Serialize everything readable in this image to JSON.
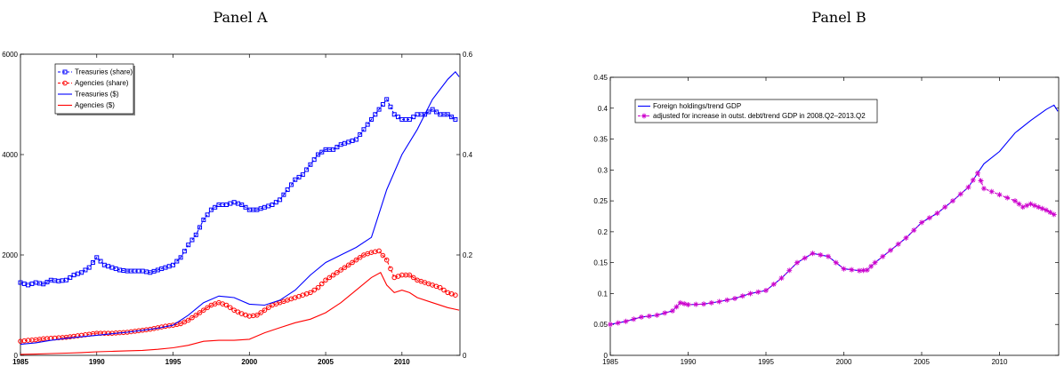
{
  "panels": {
    "a_title": "Panel A",
    "b_title": "Panel B"
  },
  "chart_data": [
    {
      "type": "line",
      "title": "Panel A",
      "xlim": [
        1985,
        2013.8
      ],
      "ylim_left": [
        0,
        6000
      ],
      "ylim_right": [
        0,
        0.6
      ],
      "x_ticks": [
        1985,
        1990,
        1995,
        2000,
        2005,
        2010
      ],
      "y_ticks_left": [
        0,
        2000,
        4000,
        6000
      ],
      "y_ticks_right": [
        0,
        0.2,
        0.4,
        0.6
      ],
      "legend_position": "top-left",
      "series": [
        {
          "name": "Treasuries (share)",
          "axis": "right",
          "color": "#0000ff",
          "style": "dashed-square",
          "points": [
            [
              1985,
              0.145
            ],
            [
              1985.5,
              0.14
            ],
            [
              1986,
              0.145
            ],
            [
              1986.5,
              0.142
            ],
            [
              1987,
              0.15
            ],
            [
              1987.5,
              0.148
            ],
            [
              1988,
              0.15
            ],
            [
              1988.5,
              0.16
            ],
            [
              1989,
              0.165
            ],
            [
              1989.5,
              0.175
            ],
            [
              1990,
              0.195
            ],
            [
              1990.5,
              0.18
            ],
            [
              1991,
              0.175
            ],
            [
              1991.5,
              0.17
            ],
            [
              1992,
              0.168
            ],
            [
              1992.5,
              0.168
            ],
            [
              1993,
              0.168
            ],
            [
              1993.5,
              0.165
            ],
            [
              1994,
              0.17
            ],
            [
              1994.5,
              0.175
            ],
            [
              1995,
              0.18
            ],
            [
              1995.5,
              0.195
            ],
            [
              1996,
              0.22
            ],
            [
              1996.5,
              0.24
            ],
            [
              1997,
              0.27
            ],
            [
              1997.5,
              0.29
            ],
            [
              1998,
              0.3
            ],
            [
              1998.5,
              0.3
            ],
            [
              1999,
              0.305
            ],
            [
              1999.5,
              0.3
            ],
            [
              2000,
              0.29
            ],
            [
              2000.5,
              0.29
            ],
            [
              2001,
              0.295
            ],
            [
              2001.5,
              0.3
            ],
            [
              2002,
              0.31
            ],
            [
              2002.5,
              0.33
            ],
            [
              2003,
              0.35
            ],
            [
              2003.5,
              0.36
            ],
            [
              2004,
              0.38
            ],
            [
              2004.5,
              0.4
            ],
            [
              2005,
              0.41
            ],
            [
              2005.5,
              0.41
            ],
            [
              2006,
              0.42
            ],
            [
              2006.5,
              0.425
            ],
            [
              2007,
              0.43
            ],
            [
              2007.5,
              0.45
            ],
            [
              2008,
              0.47
            ],
            [
              2008.5,
              0.49
            ],
            [
              2009,
              0.51
            ],
            [
              2009.5,
              0.48
            ],
            [
              2010,
              0.47
            ],
            [
              2010.5,
              0.47
            ],
            [
              2011,
              0.48
            ],
            [
              2011.5,
              0.48
            ],
            [
              2012,
              0.49
            ],
            [
              2012.5,
              0.48
            ],
            [
              2013,
              0.48
            ],
            [
              2013.5,
              0.47
            ]
          ]
        },
        {
          "name": "Agencies (share)",
          "axis": "right",
          "color": "#ff0000",
          "style": "dashed-circle",
          "points": [
            [
              1985,
              0.028
            ],
            [
              1985.5,
              0.03
            ],
            [
              1986,
              0.031
            ],
            [
              1986.5,
              0.033
            ],
            [
              1987,
              0.034
            ],
            [
              1987.5,
              0.035
            ],
            [
              1988,
              0.036
            ],
            [
              1988.5,
              0.038
            ],
            [
              1989,
              0.04
            ],
            [
              1989.5,
              0.042
            ],
            [
              1990,
              0.044
            ],
            [
              1990.5,
              0.044
            ],
            [
              1991,
              0.044
            ],
            [
              1991.5,
              0.045
            ],
            [
              1992,
              0.046
            ],
            [
              1992.5,
              0.048
            ],
            [
              1993,
              0.05
            ],
            [
              1993.5,
              0.052
            ],
            [
              1994,
              0.055
            ],
            [
              1994.5,
              0.058
            ],
            [
              1995,
              0.06
            ],
            [
              1995.5,
              0.063
            ],
            [
              1996,
              0.07
            ],
            [
              1996.5,
              0.08
            ],
            [
              1997,
              0.09
            ],
            [
              1997.5,
              0.1
            ],
            [
              1998,
              0.105
            ],
            [
              1998.5,
              0.1
            ],
            [
              1999,
              0.09
            ],
            [
              1999.5,
              0.083
            ],
            [
              2000,
              0.078
            ],
            [
              2000.5,
              0.08
            ],
            [
              2001,
              0.09
            ],
            [
              2001.5,
              0.1
            ],
            [
              2002,
              0.105
            ],
            [
              2002.5,
              0.11
            ],
            [
              2003,
              0.115
            ],
            [
              2003.5,
              0.12
            ],
            [
              2004,
              0.125
            ],
            [
              2004.5,
              0.135
            ],
            [
              2005,
              0.15
            ],
            [
              2005.5,
              0.16
            ],
            [
              2006,
              0.17
            ],
            [
              2006.5,
              0.18
            ],
            [
              2007,
              0.19
            ],
            [
              2007.5,
              0.2
            ],
            [
              2008,
              0.205
            ],
            [
              2008.5,
              0.208
            ],
            [
              2009,
              0.19
            ],
            [
              2009.5,
              0.155
            ],
            [
              2010,
              0.16
            ],
            [
              2010.5,
              0.16
            ],
            [
              2011,
              0.15
            ],
            [
              2011.5,
              0.145
            ],
            [
              2012,
              0.14
            ],
            [
              2012.5,
              0.135
            ],
            [
              2013,
              0.125
            ],
            [
              2013.5,
              0.12
            ]
          ]
        },
        {
          "name": "Treasuries ($)",
          "axis": "left",
          "color": "#0000ff",
          "style": "solid",
          "points": [
            [
              1985,
              220
            ],
            [
              1986,
              250
            ],
            [
              1987,
              300
            ],
            [
              1988,
              340
            ],
            [
              1989,
              370
            ],
            [
              1990,
              400
            ],
            [
              1991,
              430
            ],
            [
              1992,
              460
            ],
            [
              1993,
              500
            ],
            [
              1994,
              540
            ],
            [
              1995,
              600
            ],
            [
              1996,
              800
            ],
            [
              1997,
              1050
            ],
            [
              1998,
              1180
            ],
            [
              1999,
              1150
            ],
            [
              2000,
              1020
            ],
            [
              2001,
              1000
            ],
            [
              2002,
              1100
            ],
            [
              2003,
              1300
            ],
            [
              2004,
              1600
            ],
            [
              2005,
              1850
            ],
            [
              2006,
              2000
            ],
            [
              2007,
              2150
            ],
            [
              2008,
              2350
            ],
            [
              2009,
              3300
            ],
            [
              2010,
              4000
            ],
            [
              2011,
              4500
            ],
            [
              2012,
              5100
            ],
            [
              2013,
              5500
            ],
            [
              2013.5,
              5650
            ],
            [
              2013.75,
              5550
            ]
          ]
        },
        {
          "name": "Agencies ($)",
          "axis": "left",
          "color": "#ff0000",
          "style": "solid",
          "points": [
            [
              1985,
              20
            ],
            [
              1986,
              25
            ],
            [
              1987,
              35
            ],
            [
              1988,
              45
            ],
            [
              1989,
              55
            ],
            [
              1990,
              70
            ],
            [
              1991,
              80
            ],
            [
              1992,
              90
            ],
            [
              1993,
              100
            ],
            [
              1994,
              120
            ],
            [
              1995,
              150
            ],
            [
              1996,
              200
            ],
            [
              1997,
              280
            ],
            [
              1998,
              300
            ],
            [
              1999,
              300
            ],
            [
              2000,
              320
            ],
            [
              2001,
              450
            ],
            [
              2002,
              550
            ],
            [
              2003,
              650
            ],
            [
              2004,
              720
            ],
            [
              2005,
              850
            ],
            [
              2006,
              1050
            ],
            [
              2007,
              1300
            ],
            [
              2008,
              1550
            ],
            [
              2008.6,
              1650
            ],
            [
              2009,
              1400
            ],
            [
              2009.5,
              1250
            ],
            [
              2010,
              1300
            ],
            [
              2010.5,
              1250
            ],
            [
              2011,
              1150
            ],
            [
              2012,
              1050
            ],
            [
              2013,
              950
            ],
            [
              2013.75,
              900
            ]
          ]
        }
      ]
    },
    {
      "type": "line",
      "title": "Panel B",
      "xlim": [
        1985,
        2013.8
      ],
      "ylim": [
        0,
        0.45
      ],
      "x_ticks": [
        1985,
        1990,
        1995,
        2000,
        2005,
        2010
      ],
      "y_ticks": [
        0,
        0.05,
        0.1,
        0.15,
        0.2,
        0.25,
        0.3,
        0.35,
        0.4,
        0.45
      ],
      "y_tick_labels": [
        "0",
        "0.05",
        "0.1",
        "0.15",
        "0.2",
        "0.25",
        "0.3",
        "0.35",
        "0.4",
        "0.45"
      ],
      "legend_position": "top-left",
      "series": [
        {
          "name": "Foreign holdings/trend GDP",
          "color": "#0000ff",
          "style": "solid",
          "points": [
            [
              1985,
              0.05
            ],
            [
              1986,
              0.055
            ],
            [
              1987,
              0.062
            ],
            [
              1988,
              0.065
            ],
            [
              1989,
              0.072
            ],
            [
              1989.5,
              0.085
            ],
            [
              1990,
              0.082
            ],
            [
              1991,
              0.083
            ],
            [
              1992,
              0.087
            ],
            [
              1993,
              0.092
            ],
            [
              1994,
              0.1
            ],
            [
              1995,
              0.105
            ],
            [
              1996,
              0.125
            ],
            [
              1997,
              0.15
            ],
            [
              1998,
              0.165
            ],
            [
              1999,
              0.16
            ],
            [
              2000,
              0.14
            ],
            [
              2001,
              0.137
            ],
            [
              2001.5,
              0.138
            ],
            [
              2002,
              0.15
            ],
            [
              2003,
              0.17
            ],
            [
              2004,
              0.19
            ],
            [
              2005,
              0.215
            ],
            [
              2006,
              0.23
            ],
            [
              2007,
              0.25
            ],
            [
              2008,
              0.272
            ],
            [
              2008.6,
              0.295
            ],
            [
              2009,
              0.31
            ],
            [
              2010,
              0.33
            ],
            [
              2011,
              0.36
            ],
            [
              2012,
              0.38
            ],
            [
              2013,
              0.398
            ],
            [
              2013.5,
              0.405
            ],
            [
              2013.75,
              0.395
            ]
          ]
        },
        {
          "name": "adjusted for increase in outst. debt/trend GDP in 2008.Q2–2013.Q2",
          "color": "#cc00cc",
          "style": "dashed-star",
          "points": [
            [
              1985,
              0.05
            ],
            [
              1986,
              0.055
            ],
            [
              1987,
              0.062
            ],
            [
              1988,
              0.065
            ],
            [
              1989,
              0.072
            ],
            [
              1989.5,
              0.085
            ],
            [
              1990,
              0.082
            ],
            [
              1991,
              0.083
            ],
            [
              1992,
              0.087
            ],
            [
              1993,
              0.092
            ],
            [
              1994,
              0.1
            ],
            [
              1995,
              0.105
            ],
            [
              1996,
              0.125
            ],
            [
              1997,
              0.15
            ],
            [
              1998,
              0.165
            ],
            [
              1999,
              0.16
            ],
            [
              2000,
              0.14
            ],
            [
              2001,
              0.137
            ],
            [
              2001.5,
              0.138
            ],
            [
              2002,
              0.15
            ],
            [
              2003,
              0.17
            ],
            [
              2004,
              0.19
            ],
            [
              2005,
              0.215
            ],
            [
              2006,
              0.23
            ],
            [
              2007,
              0.25
            ],
            [
              2008,
              0.272
            ],
            [
              2008.6,
              0.295
            ],
            [
              2009,
              0.27
            ],
            [
              2010,
              0.26
            ],
            [
              2011,
              0.25
            ],
            [
              2011.5,
              0.24
            ],
            [
              2012,
              0.245
            ],
            [
              2012.5,
              0.24
            ],
            [
              2013,
              0.235
            ],
            [
              2013.5,
              0.228
            ]
          ]
        }
      ]
    }
  ]
}
